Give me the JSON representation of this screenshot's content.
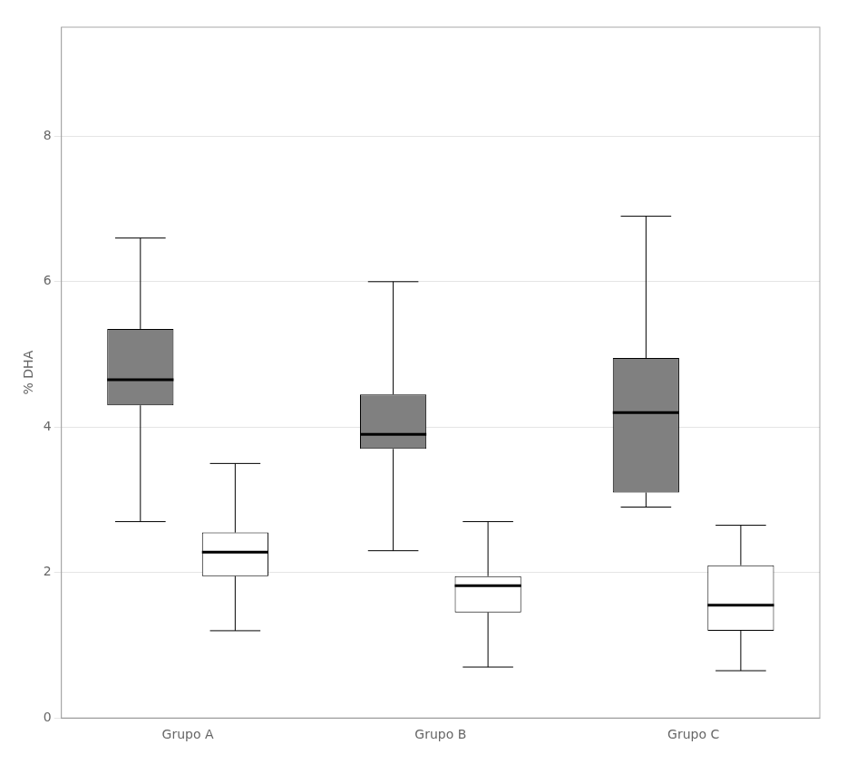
{
  "chart_data": {
    "type": "boxplot",
    "ylabel": "% DHA",
    "categories": [
      "Grupo A",
      "Grupo B",
      "Grupo C"
    ],
    "series": [
      {
        "color": "#808080",
        "values": [
          {
            "whisker_low": 2.7,
            "q1": 4.3,
            "median": 4.65,
            "q3": 5.35,
            "whisker_high": 6.6
          },
          {
            "whisker_low": 2.3,
            "q1": 3.7,
            "median": 3.9,
            "q3": 4.45,
            "whisker_high": 6.0
          },
          {
            "whisker_low": 2.9,
            "q1": 3.1,
            "median": 4.2,
            "q3": 4.95,
            "whisker_high": 6.9
          }
        ]
      },
      {
        "color": "#ffffff",
        "values": [
          {
            "whisker_low": 1.2,
            "q1": 1.95,
            "median": 2.28,
            "q3": 2.55,
            "whisker_high": 3.5
          },
          {
            "whisker_low": 0.7,
            "q1": 1.45,
            "median": 1.82,
            "q3": 1.95,
            "whisker_high": 2.7
          },
          {
            "whisker_low": 0.65,
            "q1": 1.2,
            "median": 1.55,
            "q3": 2.1,
            "whisker_high": 2.65
          }
        ]
      }
    ],
    "ylim": [
      0,
      9.5
    ],
    "yticks": [
      0,
      2,
      4,
      6,
      8
    ],
    "grid": "y"
  }
}
